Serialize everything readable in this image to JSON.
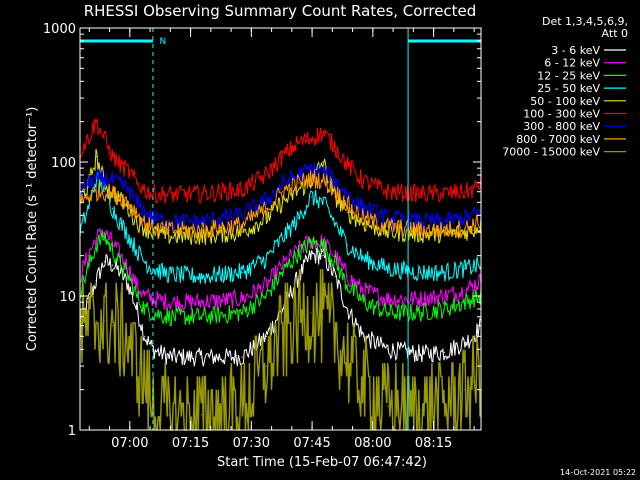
{
  "chart_data": {
    "type": "line",
    "title": "RHESSI Observing Summary Count Rates, Corrected",
    "xlabel": "Start Time (15-Feb-07 06:47:42)",
    "ylabel": "Corrected Count Rate (s⁻¹ detector⁻¹)",
    "y_scale": "log",
    "ylim": [
      1,
      1000
    ],
    "y_ticks": [
      "1",
      "10",
      "100",
      "1000"
    ],
    "x_range_minutes": [
      0,
      99
    ],
    "x_tick_labels": [
      "07:00",
      "07:15",
      "07:30",
      "07:45",
      "08:00",
      "08:15"
    ],
    "x_tick_minutes": [
      12.3,
      27.3,
      42.3,
      57.3,
      72.3,
      87.3
    ],
    "legend_header": [
      "Det 1,3,4,5,6,9,",
      "Att 0"
    ],
    "legend_placement": "right",
    "series": [
      {
        "name": "3 - 6 keV",
        "color": "#ffffff",
        "x": [
          0,
          2,
          4,
          6,
          8,
          10,
          12,
          14,
          16,
          18,
          22,
          30,
          40,
          46,
          50,
          54,
          57,
          60,
          63,
          66,
          70,
          76,
          84,
          90,
          95,
          97,
          99
        ],
        "y": [
          6,
          9,
          13,
          18,
          17,
          15,
          12,
          8,
          5,
          4,
          3.5,
          3.5,
          3.5,
          5,
          8,
          14,
          20,
          20,
          14,
          8,
          5,
          4,
          3.7,
          3.8,
          4.5,
          5,
          6
        ]
      },
      {
        "name": "6 - 12 keV",
        "color": "#ff00ff",
        "x": [
          0,
          2,
          4,
          6,
          8,
          10,
          12,
          14,
          16,
          18,
          22,
          30,
          40,
          46,
          50,
          54,
          57,
          60,
          63,
          66,
          70,
          76,
          84,
          90,
          95,
          97,
          99
        ],
        "y": [
          14,
          20,
          27,
          30,
          25,
          20,
          16,
          12,
          10,
          9.5,
          9,
          9,
          9.5,
          12,
          17,
          22,
          26,
          25,
          20,
          14,
          11,
          9.5,
          9.5,
          10,
          11,
          12,
          13
        ]
      },
      {
        "name": "12 - 25 keV",
        "color": "#00ff00",
        "x": [
          0,
          2,
          4,
          6,
          8,
          10,
          12,
          14,
          16,
          18,
          22,
          30,
          40,
          46,
          50,
          54,
          57,
          60,
          63,
          66,
          70,
          76,
          84,
          90,
          95,
          97,
          99
        ],
        "y": [
          11,
          16,
          24,
          28,
          22,
          17,
          14,
          10,
          8,
          7.5,
          7,
          7,
          7.5,
          10,
          15,
          21,
          25,
          24,
          18,
          12,
          9,
          7.5,
          7.5,
          8,
          9,
          9.5,
          10
        ]
      },
      {
        "name": "25 - 50 keV",
        "color": "#00ffff",
        "x": [
          0,
          2,
          4,
          6,
          8,
          10,
          12,
          14,
          16,
          18,
          22,
          30,
          40,
          46,
          50,
          54,
          57,
          60,
          63,
          66,
          70,
          76,
          84,
          90,
          95,
          97,
          99
        ],
        "y": [
          30,
          45,
          75,
          65,
          45,
          35,
          28,
          22,
          18,
          16,
          14.5,
          14,
          15,
          19,
          27,
          38,
          55,
          50,
          35,
          24,
          19,
          16,
          15,
          15,
          16,
          16.5,
          17
        ]
      },
      {
        "name": "50 - 100 keV",
        "color": "#e6e600",
        "x": [
          0,
          2,
          4,
          6,
          8,
          10,
          12,
          14,
          16,
          18,
          22,
          30,
          40,
          46,
          50,
          54,
          57,
          60,
          63,
          66,
          70,
          76,
          84,
          90,
          95,
          97,
          99
        ],
        "y": [
          55,
          65,
          110,
          70,
          60,
          52,
          45,
          36,
          32,
          30,
          28,
          28,
          30,
          38,
          50,
          62,
          72,
          100,
          55,
          42,
          35,
          30,
          29,
          29,
          30,
          31,
          34
        ]
      },
      {
        "name": "100 - 300 keV",
        "color": "#ff0000",
        "x": [
          0,
          2,
          4,
          6,
          8,
          10,
          12,
          14,
          16,
          18,
          22,
          30,
          40,
          46,
          50,
          54,
          57,
          60,
          63,
          66,
          70,
          76,
          84,
          90,
          95,
          97,
          99
        ],
        "y": [
          120,
          150,
          200,
          150,
          110,
          95,
          85,
          70,
          62,
          58,
          57,
          58,
          62,
          80,
          110,
          140,
          150,
          165,
          130,
          95,
          72,
          60,
          58,
          58,
          60,
          62,
          70
        ]
      },
      {
        "name": "300 - 800 keV",
        "color": "#0000ff",
        "x": [
          0,
          2,
          4,
          6,
          8,
          10,
          12,
          14,
          16,
          18,
          22,
          30,
          40,
          46,
          50,
          54,
          57,
          60,
          63,
          66,
          70,
          76,
          84,
          90,
          95,
          97,
          99
        ],
        "y": [
          62,
          68,
          75,
          75,
          72,
          68,
          62,
          50,
          42,
          38,
          36,
          36,
          40,
          52,
          68,
          80,
          88,
          85,
          72,
          58,
          45,
          38,
          36,
          36,
          38,
          40,
          43
        ]
      },
      {
        "name": "800 - 7000 keV",
        "color": "#ff9900",
        "x": [
          0,
          2,
          4,
          6,
          8,
          10,
          12,
          14,
          16,
          18,
          22,
          30,
          40,
          46,
          50,
          54,
          57,
          60,
          63,
          66,
          70,
          76,
          84,
          90,
          95,
          97,
          99
        ],
        "y": [
          50,
          55,
          60,
          60,
          58,
          55,
          50,
          42,
          35,
          32,
          31,
          31,
          34,
          45,
          60,
          70,
          75,
          73,
          60,
          48,
          38,
          33,
          31,
          31,
          32,
          34,
          36
        ]
      },
      {
        "name": "7000 - 15000 keV",
        "color": "#999900",
        "x": [
          0,
          2,
          4,
          6,
          8,
          10,
          12,
          14,
          16,
          18,
          22,
          30,
          40,
          46,
          50,
          54,
          57,
          60,
          63,
          66,
          70,
          76,
          84,
          90,
          95,
          97,
          99
        ],
        "y": [
          5,
          6,
          6.5,
          6.5,
          6,
          5.5,
          4.5,
          3.2,
          2.2,
          1.5,
          1.3,
          1.3,
          1.5,
          3,
          5,
          6.5,
          7.5,
          7,
          5,
          3.5,
          2.2,
          1.5,
          1.4,
          1.6,
          2,
          2.3,
          2.8
        ]
      }
    ],
    "bars": [
      {
        "label": "N",
        "color": "#00ffff",
        "from": 0,
        "to": 18
      },
      {
        "label": "",
        "color": "#00ffff",
        "from": 81,
        "to": 99
      }
    ],
    "markers": [
      {
        "type": "solid",
        "color": "#00ffff",
        "at": 0
      },
      {
        "type": "dashed",
        "color": "#00ffff",
        "at": 18
      },
      {
        "type": "solid",
        "color": "#00ffff",
        "at": 81
      },
      {
        "type": "dashed",
        "color": "#00ffff",
        "at": 99
      }
    ],
    "grid": false
  },
  "footer": {
    "timestamp": "14-Oct-2021 05:22"
  }
}
